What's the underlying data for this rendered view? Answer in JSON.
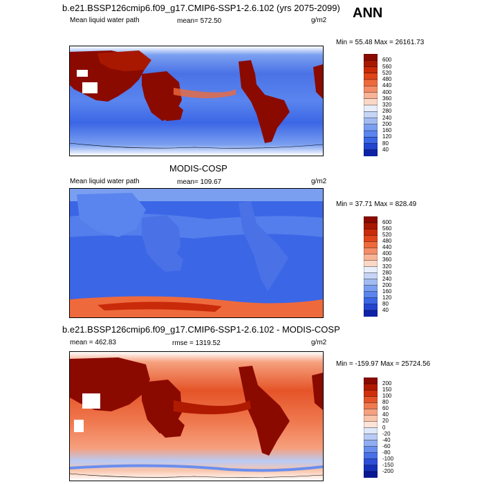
{
  "season": "ANN",
  "panels": [
    {
      "title": "b.e21.BSSP126cmip6.f09_g17.CMIP6-SSP1-2.6.102 (yrs 2075-2099)",
      "left_label": "Mean liquid water path",
      "stat_label": "mean= 572.50",
      "units": "g/m2",
      "minmax": "Min =  55.48 Max = 26161.73"
    },
    {
      "title": "MODIS-COSP",
      "left_label": "Mean liquid water path",
      "stat_label": "mean= 109.67",
      "units": "g/m2",
      "minmax": "Min =  37.71 Max = 828.49"
    },
    {
      "title": "b.e21.BSSP126cmip6.f09_g17.CMIP6-SSP1-2.6.102 - MODIS-COSP",
      "left_label": "mean = 462.83",
      "stat_label": "rmse = 1319.52",
      "units": "g/m2",
      "minmax": "Min = -159.97 Max = 25724.56"
    }
  ],
  "colorbars": [
    {
      "levels": [
        "600",
        "560",
        "520",
        "480",
        "440",
        "400",
        "360",
        "320",
        "280",
        "240",
        "200",
        "160",
        "120",
        "80",
        "40"
      ],
      "colors": [
        "#8b0a00",
        "#a81800",
        "#c92a0a",
        "#e0441a",
        "#ee6a3c",
        "#f58d68",
        "#f9b497",
        "#fbd8c6",
        "#e8eefa",
        "#c6d4f6",
        "#a2bbf1",
        "#7a9ff0",
        "#5a85ee",
        "#3b66e6",
        "#2244d0",
        "#0d22a6"
      ]
    },
    {
      "levels": [
        "600",
        "560",
        "520",
        "480",
        "440",
        "400",
        "360",
        "320",
        "280",
        "240",
        "200",
        "160",
        "120",
        "80",
        "40"
      ],
      "colors": [
        "#8b0a00",
        "#a81800",
        "#c92a0a",
        "#e0441a",
        "#ee6a3c",
        "#f58d68",
        "#f9b497",
        "#fbd8c6",
        "#e8eefa",
        "#c6d4f6",
        "#a2bbf1",
        "#7a9ff0",
        "#5a85ee",
        "#3b66e6",
        "#2244d0",
        "#0d22a6"
      ]
    },
    {
      "levels": [
        "200",
        "150",
        "100",
        "80",
        "60",
        "40",
        "20",
        "0",
        "-20",
        "-40",
        "-60",
        "-80",
        "-100",
        "-150",
        "-200"
      ],
      "colors": [
        "#8b0a00",
        "#b01a00",
        "#d0300e",
        "#e55428",
        "#f07a50",
        "#f6a07e",
        "#fac4aa",
        "#fde4d8",
        "#dfe7fa",
        "#b9cbf6",
        "#91adf2",
        "#6a8eee",
        "#4a70e8",
        "#2d4fd8",
        "#1530b8",
        "#0a1890"
      ]
    }
  ],
  "chart_data": [
    {
      "type": "heatmap",
      "title": "b.e21.BSSP126cmip6.f09_g17.CMIP6-SSP1-2.6.102 (yrs 2075-2099)",
      "variable": "Mean liquid water path",
      "units": "g/m2",
      "mean": 572.5,
      "min": 55.48,
      "max": 26161.73,
      "contour_levels": [
        40,
        80,
        120,
        160,
        200,
        240,
        280,
        320,
        360,
        400,
        440,
        480,
        520,
        560,
        600
      ]
    },
    {
      "type": "heatmap",
      "title": "MODIS-COSP",
      "variable": "Mean liquid water path",
      "units": "g/m2",
      "mean": 109.67,
      "min": 37.71,
      "max": 828.49,
      "contour_levels": [
        40,
        80,
        120,
        160,
        200,
        240,
        280,
        320,
        360,
        400,
        440,
        480,
        520,
        560,
        600
      ]
    },
    {
      "type": "heatmap",
      "title": "b.e21.BSSP126cmip6.f09_g17.CMIP6-SSP1-2.6.102 - MODIS-COSP",
      "units": "g/m2",
      "mean": 462.83,
      "rmse": 1319.52,
      "min": -159.97,
      "max": 25724.56,
      "contour_levels": [
        -200,
        -150,
        -100,
        -80,
        -60,
        -40,
        -20,
        0,
        20,
        40,
        60,
        80,
        100,
        150,
        200
      ]
    }
  ]
}
